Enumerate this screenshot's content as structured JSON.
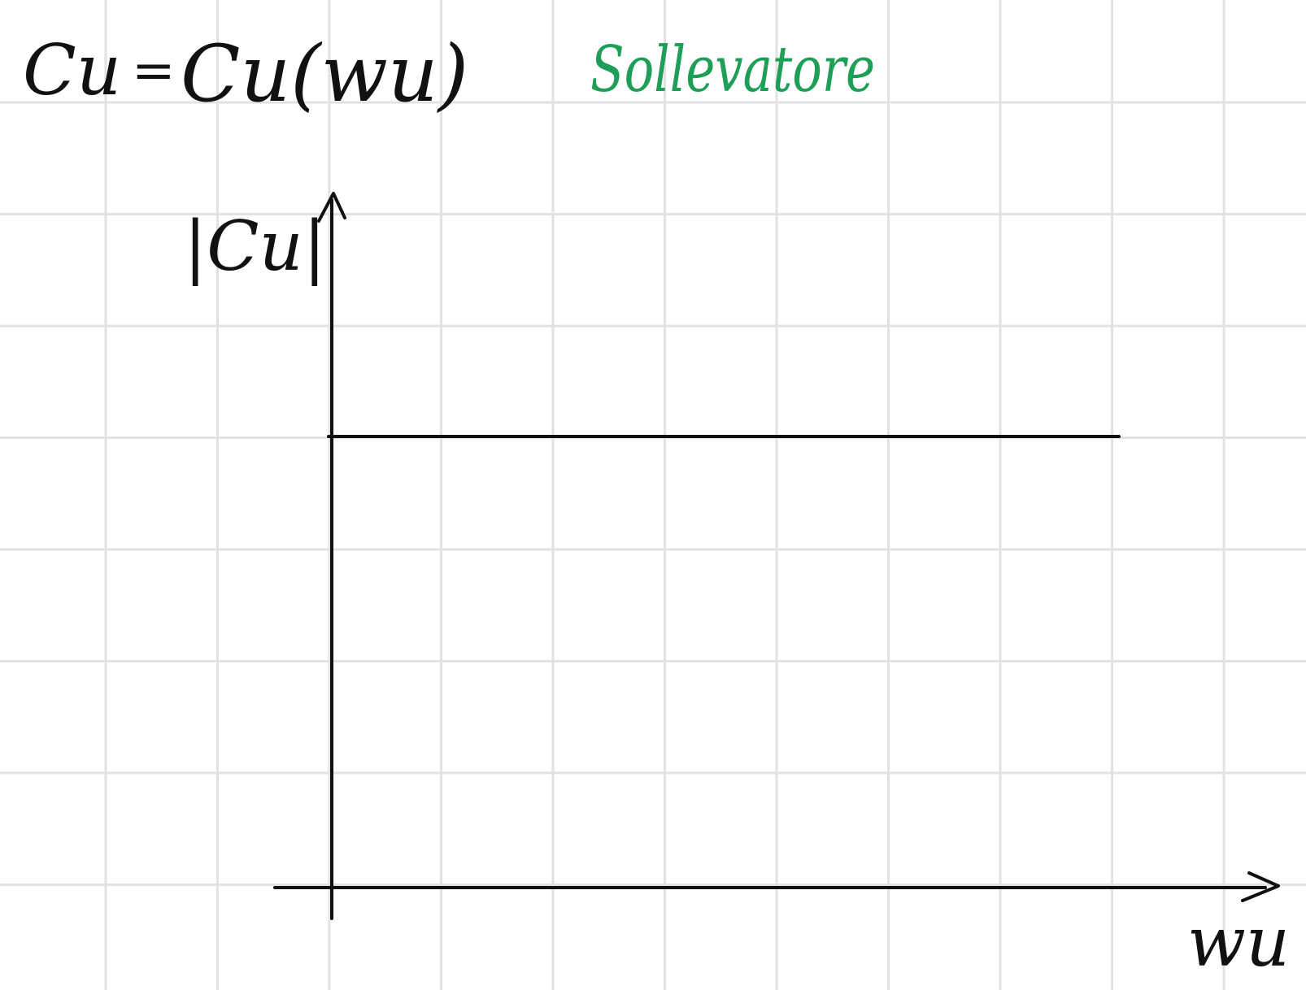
{
  "formula": {
    "lhs": "Cu",
    "equals": "=",
    "rhs": "Cu(wu)"
  },
  "title": "Sollevatore",
  "axes": {
    "ylabel": "|Cu|",
    "xlabel": "wu"
  },
  "chart_data": {
    "type": "line",
    "series": [
      {
        "x": [
          0,
          1
        ],
        "y": [
          1,
          1
        ]
      }
    ],
    "grid": true
  },
  "colors": {
    "ink": "#111111",
    "title": "#1e9e57",
    "grid": "#e2e2e2",
    "paper": "#ffffff"
  }
}
